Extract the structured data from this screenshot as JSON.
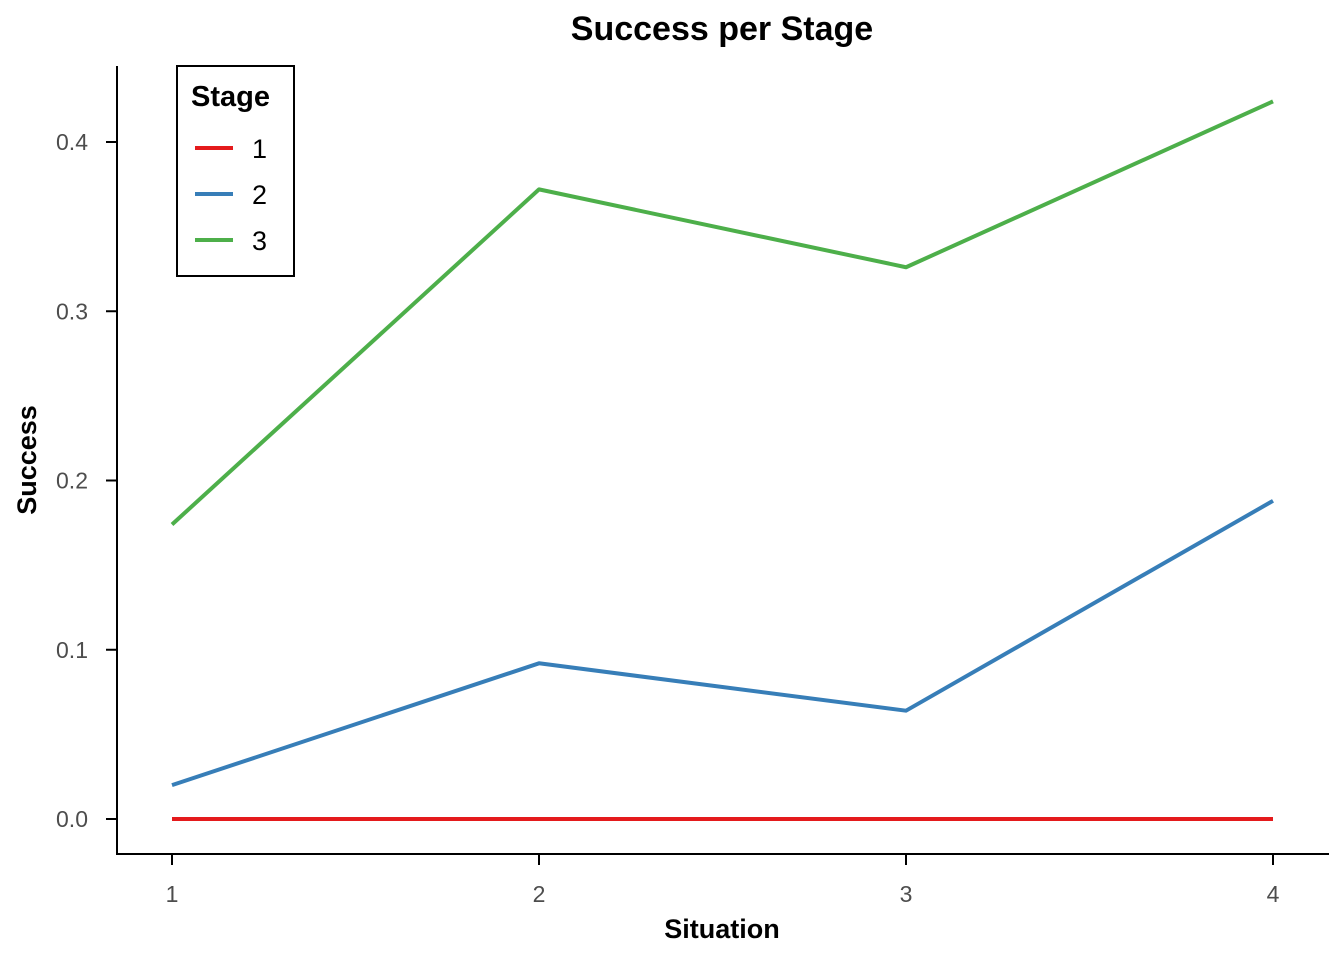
{
  "chart_data": {
    "type": "line",
    "title": "Success per Stage",
    "xlabel": "Situation",
    "ylabel": "Success",
    "x": [
      1,
      2,
      3,
      4
    ],
    "xticks": [
      "1",
      "2",
      "3",
      "4"
    ],
    "yticks": [
      "0.0",
      "0.1",
      "0.2",
      "0.3",
      "0.4"
    ],
    "ylim": [
      -0.021,
      0.445
    ],
    "grid": false,
    "legend": {
      "title": "Stage",
      "placement": "top-left"
    },
    "series": [
      {
        "name": "1",
        "color": "#e41a1c",
        "values": [
          0.0,
          0.0,
          0.0,
          0.0
        ]
      },
      {
        "name": "2",
        "color": "#377eb8",
        "values": [
          0.02,
          0.092,
          0.064,
          0.188
        ]
      },
      {
        "name": "3",
        "color": "#4daf4a",
        "values": [
          0.174,
          0.372,
          0.326,
          0.424
        ]
      }
    ]
  }
}
